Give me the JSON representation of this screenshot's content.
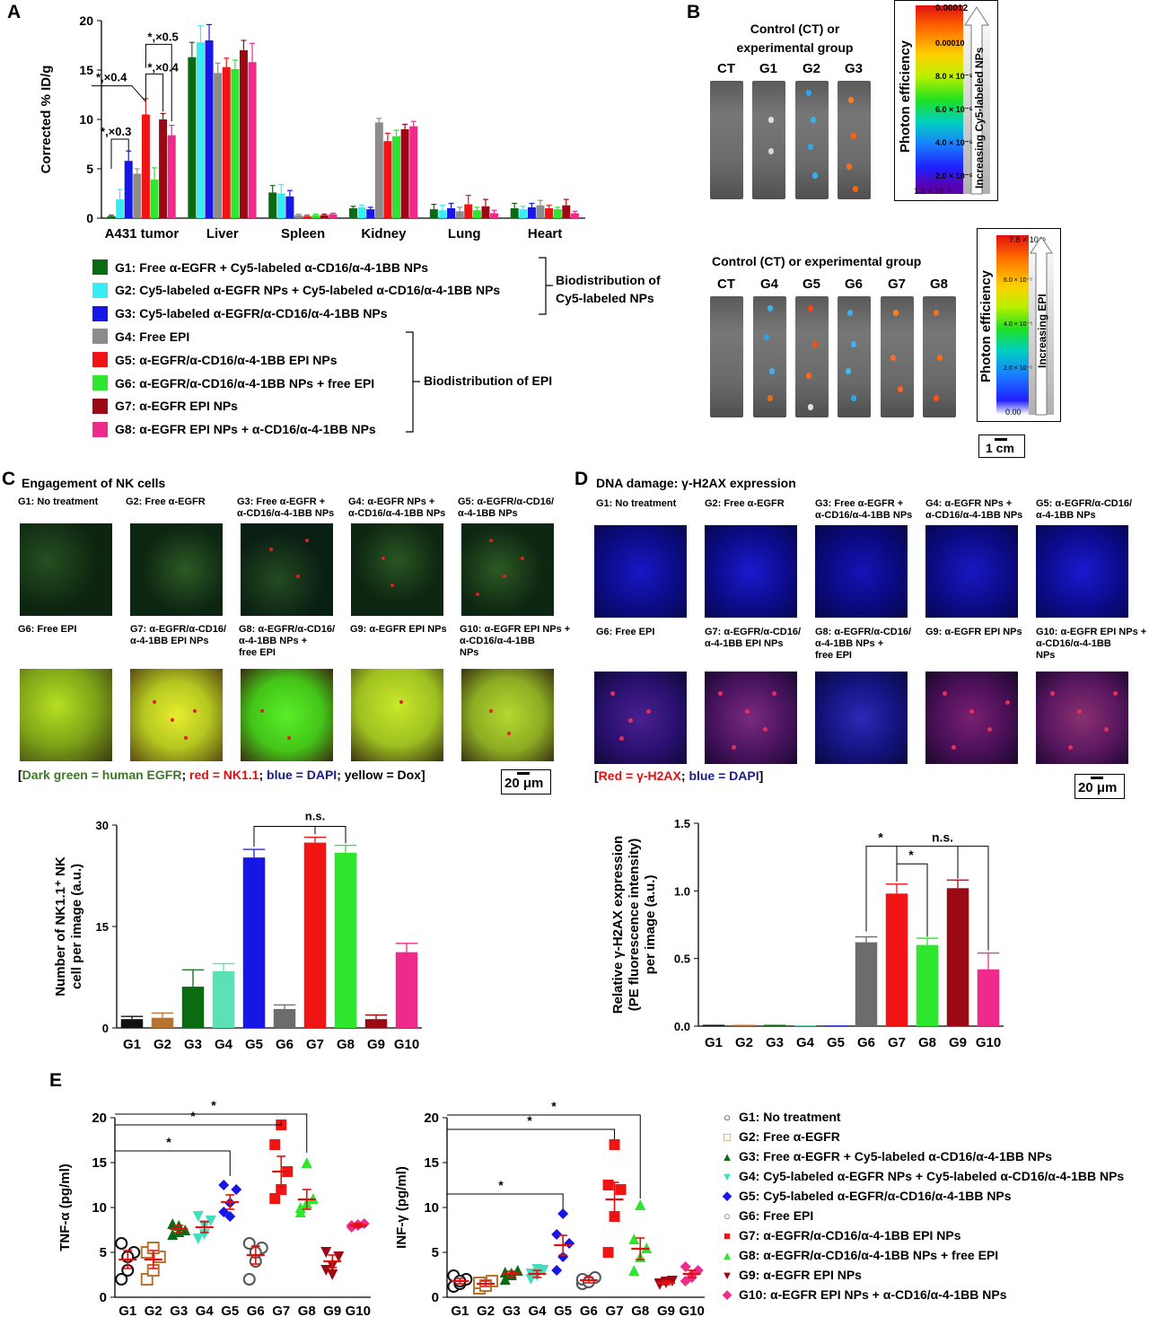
{
  "panels": {
    "a": "A",
    "b": "B",
    "c": "C",
    "d": "D",
    "e": "E"
  },
  "panel_b": {
    "top_header_1": "Control (CT) or",
    "top_header_2": "experimental group",
    "top_cols": [
      "CT",
      "G1",
      "G2",
      "G3"
    ],
    "bottom_header": "Control (CT) or experimental group",
    "bottom_cols": [
      "CT",
      "G4",
      "G5",
      "G6",
      "G7",
      "G8"
    ],
    "cb1": {
      "title": "Photon efficiency",
      "arrow": "Increasing Cy5-labeled NPs",
      "max": "0.00012",
      "ticks": [
        "0.00010",
        "8.0 × 10⁻⁵",
        "6.0 × 10⁻⁵",
        "4.0 × 10⁻⁵",
        "2.0 × 10⁻⁵"
      ],
      "min": "1.3 × 10⁻⁵"
    },
    "cb2": {
      "title": "Photon efficiency",
      "arrow": "Increasing EPI",
      "max": "7.8 × 10⁻⁵",
      "ticks": [
        "6.0 × 10⁻⁵",
        "4.0 × 10⁻⁵",
        "2.0 × 10⁻⁵"
      ],
      "min": "0.00"
    },
    "scale": "1 cm"
  },
  "legend_a": {
    "items": [
      {
        "label": "G1: Free α-EGFR + Cy5-labeled α-CD16/α-4-1BB NPs",
        "color": "#0b6b13"
      },
      {
        "label": "G2: Cy5-labeled α-EGFR NPs + Cy5-labeled α-CD16/α-4-1BB NPs",
        "color": "#38eef2"
      },
      {
        "label": "G3: Cy5-labeled α-EGFR/α-CD16/α-4-1BB NPs",
        "color": "#1616e6"
      },
      {
        "label": "G4: Free EPI",
        "color": "#8c8c8c"
      },
      {
        "label": "G5: α-EGFR/α-CD16/α-4-1BB EPI NPs",
        "color": "#f01414"
      },
      {
        "label": "G6: α-EGFR/α-CD16/α-4-1BB NPs + free EPI",
        "color": "#2ee62e"
      },
      {
        "label": "G7: α-EGFR EPI NPs",
        "color": "#9b0a14"
      },
      {
        "label": "G8: α-EGFR EPI NPs + α-CD16/α-4-1BB NPs",
        "color": "#ee2a8a"
      }
    ],
    "bracket1_1": "Biodistribution of",
    "bracket1_2": "Cy5-labeled NPs",
    "bracket2": "Biodistribution of EPI"
  },
  "panel_c": {
    "title": "Engagement of NK cells",
    "top_labels": [
      [
        "G1: No treatment",
        ""
      ],
      [
        "G2: Free α-EGFR",
        ""
      ],
      [
        "G3: Free α-EGFR +",
        "α-CD16/α-4-1BB NPs"
      ],
      [
        "G4: α-EGFR NPs +",
        "α-CD16/α-4-1BB NPs"
      ],
      [
        "G5: α-EGFR/α-CD16/",
        "α-4-1BB NPs"
      ]
    ],
    "bottom_labels": [
      [
        "G6: Free EPI",
        "",
        ""
      ],
      [
        "G7: α-EGFR/α-CD16/",
        "α-4-1BB EPI NPs",
        ""
      ],
      [
        "G8: α-EGFR/α-CD16/",
        "α-4-1BB NPs +",
        "free EPI"
      ],
      [
        "G9: α-EGFR EPI NPs",
        "",
        ""
      ],
      [
        "G10: α-EGFR EPI NPs +",
        "α-CD16/α-4-1BB",
        "NPs"
      ]
    ],
    "caption": {
      "open": "[",
      "green": "Dark green = human EGFR",
      "sep1": "; ",
      "red": "red = NK1.1",
      "sep2": "; ",
      "blue": "blue = DAPI",
      "sep3": "; yellow = Dox",
      "close": "]"
    },
    "scale": "20 μm"
  },
  "panel_d": {
    "title": "DNA damage: γ-H2AX expression",
    "top_labels": [
      [
        "G1: No treatment",
        ""
      ],
      [
        "G2: Free α-EGFR",
        ""
      ],
      [
        "G3: Free α-EGFR +",
        "α-CD16/α-4-1BB NPs"
      ],
      [
        "G4: α-EGFR NPs +",
        "α-CD16/α-4-1BB NPs"
      ],
      [
        "G5: α-EGFR/α-CD16/",
        "α-4-1BB NPs"
      ]
    ],
    "bottom_labels": [
      [
        "G6: Free EPI",
        "",
        ""
      ],
      [
        "G7: α-EGFR/α-CD16/",
        "α-4-1BB EPI NPs",
        ""
      ],
      [
        "G8: α-EGFR/α-CD16/",
        "α-4-1BB NPs +",
        "free EPI"
      ],
      [
        "G9: α-EGFR EPI NPs",
        "",
        ""
      ],
      [
        "G10: α-EGFR EPI NPs +",
        "α-CD16/α-4-1BB",
        "NPs"
      ]
    ],
    "caption": {
      "open": "[",
      "red": "Red = γ-H2AX",
      "sep": "; ",
      "blue": "blue = DAPI",
      "close": "]"
    },
    "scale": "20 μm"
  },
  "legend_e": {
    "items": [
      {
        "glyph": "○",
        "label": "G1: No treatment",
        "color": "#111111"
      },
      {
        "glyph": "□",
        "label": "G2: Free α-EGFR",
        "color": "#b87333"
      },
      {
        "glyph": "▲",
        "label": "G3: Free α-EGFR + Cy5-labeled α-CD16/α-4-1BB NPs",
        "color": "#0b6b13"
      },
      {
        "glyph": "▼",
        "label": "G4: Cy5-labeled α-EGFR NPs + Cy5-labeled α-CD16/α-4-1BB NPs",
        "color": "#3ee0c0"
      },
      {
        "glyph": "◆",
        "label": "G5: Cy5-labeled α-EGFR/α-CD16/α-4-1BB NPs",
        "color": "#1616e6"
      },
      {
        "glyph": "○",
        "label": "G6: Free EPI",
        "color": "#555555"
      },
      {
        "glyph": "■",
        "label": "G7: α-EGFR/α-CD16/α-4-1BB EPI NPs",
        "color": "#f01414"
      },
      {
        "glyph": "▲",
        "label": "G8: α-EGFR/α-CD16/α-4-1BB NPs + free EPI",
        "color": "#2ee62e"
      },
      {
        "glyph": "▼",
        "label": "G9: α-EGFR EPI NPs",
        "color": "#9b0a14"
      },
      {
        "glyph": "◆",
        "label": "G10: α-EGFR EPI NPs + α-CD16/α-4-1BB NPs",
        "color": "#ee2a8a"
      }
    ]
  },
  "chart_data": [
    {
      "id": "A",
      "type": "bar",
      "ylabel": "Corrected % ID/g",
      "ylim": [
        0,
        20
      ],
      "yticks": [
        "0",
        "5",
        "10",
        "15",
        "20"
      ],
      "categories": [
        "A431 tumor",
        "Liver",
        "Spleen",
        "Kidney",
        "Lung",
        "Heart"
      ],
      "series": [
        {
          "name": "G1",
          "color": "#0b6b13",
          "values": [
            0.2,
            16.3,
            2.6,
            1.0,
            0.9,
            1.0
          ],
          "err": [
            0.1,
            1.5,
            0.7,
            0.2,
            0.5,
            0.5
          ]
        },
        {
          "name": "G2",
          "color": "#38eef2",
          "values": [
            1.9,
            17.8,
            2.5,
            1.1,
            0.8,
            0.9
          ],
          "err": [
            1.0,
            1.7,
            0.9,
            0.2,
            0.5,
            0.3
          ]
        },
        {
          "name": "G3",
          "color": "#1616e6",
          "values": [
            5.8,
            18.0,
            2.2,
            0.9,
            1.0,
            1.1
          ],
          "err": [
            1.0,
            1.6,
            0.6,
            0.2,
            0.5,
            0.4
          ]
        },
        {
          "name": "G4",
          "color": "#8c8c8c",
          "values": [
            4.5,
            14.7,
            0.3,
            9.7,
            0.7,
            1.3
          ],
          "err": [
            0.5,
            1.0,
            0.1,
            0.4,
            0.4,
            0.5
          ]
        },
        {
          "name": "G5",
          "color": "#f01414",
          "values": [
            10.5,
            15.3,
            0.2,
            7.8,
            1.4,
            1.0
          ],
          "err": [
            1.6,
            0.9,
            0.1,
            0.8,
            0.9,
            0.3
          ]
        },
        {
          "name": "G6",
          "color": "#2ee62e",
          "values": [
            3.9,
            15.1,
            0.3,
            8.3,
            0.8,
            0.9
          ],
          "err": [
            1.2,
            0.9,
            0.1,
            0.6,
            0.3,
            0.2
          ]
        },
        {
          "name": "G7",
          "color": "#9b0a14",
          "values": [
            10.0,
            17.0,
            0.3,
            9.0,
            1.2,
            1.3
          ],
          "err": [
            0.6,
            1.0,
            0.1,
            0.5,
            0.7,
            0.6
          ]
        },
        {
          "name": "G8",
          "color": "#ee2a8a",
          "values": [
            8.4,
            15.8,
            0.4,
            9.3,
            0.5,
            0.5
          ],
          "err": [
            1.0,
            1.9,
            0.1,
            0.5,
            0.3,
            0.2
          ]
        }
      ],
      "annotations": [
        "*,×0.3",
        "*,×0.4",
        "*,×0.4",
        "*,×0.5"
      ]
    },
    {
      "id": "C",
      "type": "bar",
      "ylabel": "Number of NK1.1⁺ NK cell per image (a.u.)",
      "ylim": [
        0,
        30
      ],
      "yticks": [
        "0",
        "15",
        "30"
      ],
      "categories": [
        "G1",
        "G2",
        "G3",
        "G4",
        "G5",
        "G6",
        "G7",
        "G8",
        "G9",
        "G10"
      ],
      "values": [
        1.3,
        1.5,
        6.1,
        8.4,
        25.2,
        2.8,
        27.4,
        25.9,
        1.3,
        11.2
      ],
      "err": [
        0.4,
        0.7,
        2.5,
        1.1,
        1.2,
        0.6,
        0.8,
        1.1,
        0.6,
        1.3
      ],
      "colors": [
        "#111111",
        "#b87333",
        "#0b6b13",
        "#5ce0b6",
        "#1616e6",
        "#6c6c6c",
        "#f01414",
        "#2ee62e",
        "#9b0a14",
        "#ee2a8a"
      ],
      "annotations": [
        "n.s."
      ]
    },
    {
      "id": "D",
      "type": "bar",
      "ylabel": "Relative γ-H2AX expression (PE fluorescence intensity) per image (a.u.)",
      "ylim": [
        0,
        1.5
      ],
      "yticks": [
        "0.0",
        "0.5",
        "1.0",
        "1.5"
      ],
      "categories": [
        "G1",
        "G2",
        "G3",
        "G4",
        "G5",
        "G6",
        "G7",
        "G8",
        "G9",
        "G10"
      ],
      "values": [
        0.01,
        0.01,
        0.01,
        0.005,
        0.005,
        0.62,
        0.98,
        0.6,
        1.02,
        0.42
      ],
      "err": [
        0.0,
        0.0,
        0.0,
        0.0,
        0.0,
        0.04,
        0.07,
        0.05,
        0.06,
        0.12
      ],
      "colors": [
        "#111111",
        "#b87333",
        "#0b6b13",
        "#5ce0b6",
        "#1616e6",
        "#6c6c6c",
        "#f01414",
        "#2ee62e",
        "#9b0a14",
        "#ee2a8a"
      ],
      "annotations": [
        "*",
        "*",
        "n.s."
      ]
    },
    {
      "id": "E1",
      "type": "scatter",
      "ylabel": "TNF-α (pg/ml)",
      "ylim": [
        0,
        20
      ],
      "yticks": [
        "0",
        "5",
        "10",
        "15",
        "20"
      ],
      "categories": [
        "G1",
        "G2",
        "G3",
        "G4",
        "G5",
        "G6",
        "G7",
        "G8",
        "G9",
        "G10"
      ],
      "means": [
        4.2,
        4.2,
        7.6,
        7.8,
        10.6,
        4.7,
        14.0,
        10.9,
        4.0,
        8.0
      ],
      "sems": [
        1.0,
        1.0,
        0.4,
        0.6,
        0.8,
        1.0,
        1.7,
        1.1,
        0.7,
        0.2
      ],
      "points": [
        [
          2.0,
          3.0,
          5.0,
          6.0,
          4.5
        ],
        [
          2.0,
          3.0,
          4.5,
          5.0,
          5.5
        ],
        [
          7.0,
          8.0,
          7.5,
          8.2,
          7.3
        ],
        [
          6.5,
          8.0,
          8.5,
          9.0,
          7.0
        ],
        [
          9.5,
          10.5,
          12.0,
          12.5,
          9.0
        ],
        [
          2.0,
          4.0,
          5.5,
          6.0,
          5.0
        ],
        [
          11.0,
          12.0,
          14.0,
          17.0,
          19.2
        ],
        [
          9.5,
          10.5,
          11.0,
          10.0,
          15.0
        ],
        [
          3.0,
          3.5,
          4.5,
          5.0,
          2.5
        ],
        [
          7.8,
          8.0,
          8.2,
          8.0,
          8.1
        ]
      ],
      "markers": [
        "circle-open",
        "square-open",
        "triangle-up",
        "triangle-down",
        "diamond",
        "circle-open",
        "square",
        "triangle-up",
        "triangle-down",
        "diamond"
      ],
      "colors": [
        "#111111",
        "#b87333",
        "#0b6b13",
        "#3ee0c0",
        "#1616e6",
        "#555555",
        "#f01414",
        "#2ee62e",
        "#9b0a14",
        "#ee2a8a"
      ],
      "annotations": [
        "*",
        "*",
        "*"
      ]
    },
    {
      "id": "E2",
      "type": "scatter",
      "ylabel": "INF-γ (pg/ml)",
      "ylim": [
        0,
        20
      ],
      "yticks": [
        "0",
        "5",
        "10",
        "15",
        "20"
      ],
      "categories": [
        "G1",
        "G2",
        "G3",
        "G4",
        "G5",
        "G6",
        "G7",
        "G8",
        "G9",
        "G10"
      ],
      "means": [
        1.8,
        1.5,
        2.6,
        2.6,
        5.8,
        1.9,
        10.9,
        5.4,
        1.6,
        2.6
      ],
      "sems": [
        0.3,
        0.3,
        0.3,
        0.4,
        1.1,
        0.3,
        1.9,
        1.2,
        0.2,
        0.4
      ],
      "points": [
        [
          1.2,
          1.5,
          2.0,
          2.4,
          1.8
        ],
        [
          1.0,
          1.4,
          1.8,
          1.6,
          1.3
        ],
        [
          2.0,
          2.5,
          3.0,
          2.8,
          2.7
        ],
        [
          2.0,
          2.4,
          3.0,
          2.6,
          3.1
        ],
        [
          3.0,
          4.5,
          6.0,
          7.0,
          9.3
        ],
        [
          1.5,
          1.8,
          2.2,
          2.0,
          1.7
        ],
        [
          5.0,
          9.0,
          12.0,
          12.5,
          17.0
        ],
        [
          3.0,
          4.5,
          5.5,
          6.5,
          10.3
        ],
        [
          1.4,
          1.6,
          1.8,
          1.5,
          1.7
        ],
        [
          1.8,
          2.5,
          3.0,
          3.4,
          2.2
        ]
      ],
      "markers": [
        "circle-open",
        "square-open",
        "triangle-up",
        "triangle-down",
        "diamond",
        "circle-open",
        "square",
        "triangle-up",
        "triangle-down",
        "diamond"
      ],
      "colors": [
        "#111111",
        "#b87333",
        "#0b6b13",
        "#3ee0c0",
        "#1616e6",
        "#555555",
        "#f01414",
        "#2ee62e",
        "#9b0a14",
        "#ee2a8a"
      ],
      "annotations": [
        "*",
        "*",
        "*"
      ]
    }
  ]
}
